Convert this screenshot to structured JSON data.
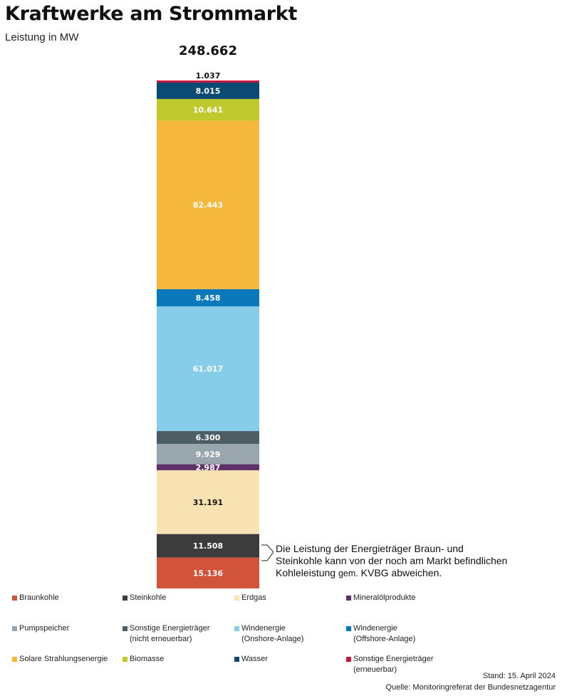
{
  "chart_data": {
    "type": "bar",
    "stacked": true,
    "title": "Kraftwerke am Strommarkt",
    "subtitle": "Leistung in MW",
    "total_label": "248.662",
    "total": 248662,
    "unit": "MW",
    "series": [
      {
        "name": "Braunkohle",
        "value": 15136,
        "label": "15.136",
        "color": "#D0533A",
        "text_color": "#ffffff"
      },
      {
        "name": "Steinkohle",
        "value": 11508,
        "label": "11.508",
        "color": "#3C3C3C",
        "text_color": "#ffffff"
      },
      {
        "name": "Erdgas",
        "value": 31191,
        "label": "31.191",
        "color": "#FAE3B3",
        "text_color": "#111111"
      },
      {
        "name": "Mineralölprodukte",
        "value": 2987,
        "label": "2.987",
        "color": "#5E3168",
        "text_color": "#ffffff"
      },
      {
        "name": "Pumpspeicher",
        "value": 9929,
        "label": "9.929",
        "color": "#9AA6AE",
        "text_color": "#ffffff"
      },
      {
        "name": "Sonstige Energieträger (nicht erneuerbar)",
        "value": 6300,
        "label": "6.300",
        "color": "#4D5D66",
        "text_color": "#ffffff"
      },
      {
        "name": "Windenergie (Onshore-Anlage)",
        "value": 61017,
        "label": "61.017",
        "color": "#86CDEA",
        "text_color": "#ffffff"
      },
      {
        "name": "Windenergie (Offshore-Anlage)",
        "value": 8458,
        "label": "8.458",
        "color": "#0A78BA",
        "text_color": "#ffffff"
      },
      {
        "name": "Solare Strahlungsenergie",
        "value": 82443,
        "label": "82.443",
        "color": "#F6B83C",
        "text_color": "#ffffff"
      },
      {
        "name": "Biomasse",
        "value": 10641,
        "label": "10.641",
        "color": "#BFC92E",
        "text_color": "#ffffff"
      },
      {
        "name": "Wasser",
        "value": 8015,
        "label": "8.015",
        "color": "#0B4A72",
        "text_color": "#ffffff"
      },
      {
        "name": "Sonstige Energieträger (erneuerbar)",
        "value": 1037,
        "label": "1.037",
        "color": "#C8143F",
        "text_color": "#111111"
      }
    ]
  },
  "annotation": {
    "line1": "Die Leistung der Energieträger Braun- und",
    "line2": "Steinkohle kann von der noch am Markt befindlichen",
    "line3_a": "Kohleleistung",
    "line3_b": "gem.",
    "line3_c": "KVBG abweichen."
  },
  "legend": [
    {
      "label": "Braunkohle",
      "color": "#D0533A"
    },
    {
      "label": "Steinkohle",
      "color": "#3C3C3C"
    },
    {
      "label": "Erdgas",
      "color": "#FAE3B3"
    },
    {
      "label": "Mineralölprodukte",
      "color": "#5E3168"
    },
    {
      "label": "Pumpspeicher",
      "color": "#9AA6AE"
    },
    {
      "label": "Sonstige Energieträger\n(nicht erneuerbar)",
      "color": "#4D5D66"
    },
    {
      "label": "Windenergie\n(Onshore-Anlage)",
      "color": "#86CDEA"
    },
    {
      "label": "Windenergie\n(Offshore-Anlage)",
      "color": "#0A78BA"
    },
    {
      "label": "Solare Strahlungsenergie",
      "color": "#F6B83C"
    },
    {
      "label": "Biomasse",
      "color": "#BFC92E"
    },
    {
      "label": "Wasser",
      "color": "#0B4A72"
    },
    {
      "label": "Sonstige Energieträger\n(erneuerbar)",
      "color": "#C8143F"
    }
  ],
  "footer": {
    "stand": "Stand: 15. April 2024",
    "quelle": "Quelle: Monitoringreferat der  Bundesnetzagentur"
  }
}
